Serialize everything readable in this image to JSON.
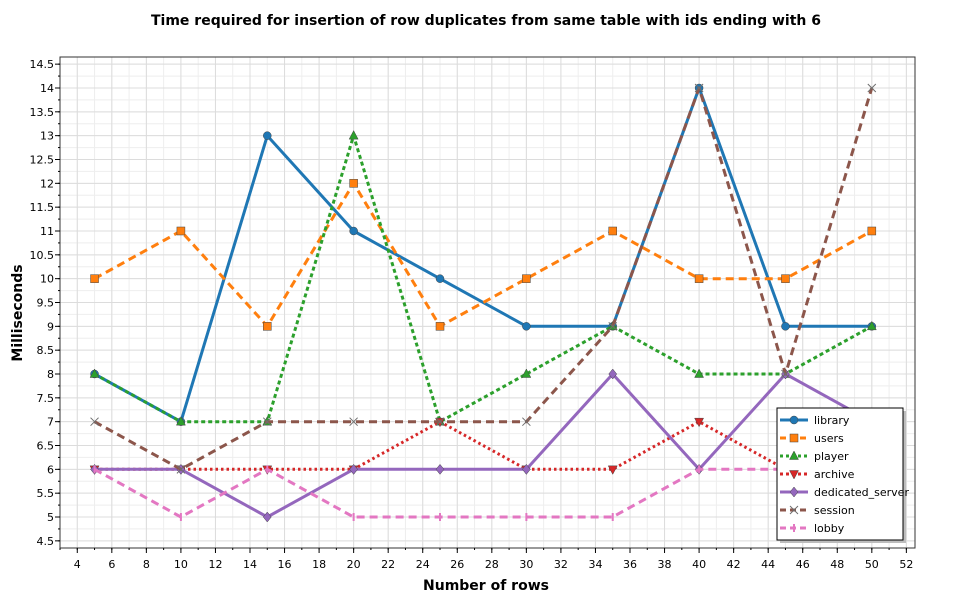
{
  "chart_data": {
    "type": "line",
    "title": "Time required for insertion of row duplicates from same table with ids ending with 6",
    "xlabel": "Number of rows",
    "ylabel": "Milliseconds",
    "xlim": [
      3,
      52.5
    ],
    "ylim": [
      4.35,
      14.65
    ],
    "x_ticks": [
      4,
      6,
      8,
      10,
      12,
      14,
      16,
      18,
      20,
      22,
      24,
      26,
      28,
      30,
      32,
      34,
      36,
      38,
      40,
      42,
      44,
      46,
      48,
      50,
      52
    ],
    "y_ticks": [
      4.5,
      5,
      5.5,
      6,
      6.5,
      7,
      7.5,
      8,
      8.5,
      9,
      9.5,
      10,
      10.5,
      11,
      11.5,
      12,
      12.5,
      13,
      13.5,
      14,
      14.5
    ],
    "grid": true,
    "legend_position": "bottom-right",
    "x": [
      5,
      10,
      15,
      20,
      25,
      30,
      35,
      40,
      45,
      50
    ],
    "series": [
      {
        "name": "library",
        "values": [
          8,
          7,
          13,
          11,
          10,
          9,
          9,
          14,
          9,
          9
        ],
        "color": "#1f77b4",
        "dash": "solid",
        "marker": "circle"
      },
      {
        "name": "users",
        "values": [
          10,
          11,
          9,
          12,
          9,
          10,
          11,
          10,
          10,
          11
        ],
        "color": "#ff7f0e",
        "dash": "dashed",
        "marker": "square"
      },
      {
        "name": "player",
        "values": [
          8,
          7,
          7,
          13,
          7,
          8,
          9,
          8,
          8,
          9
        ],
        "color": "#2ca02c",
        "dash": "dotted",
        "marker": "triangle"
      },
      {
        "name": "archive",
        "values": [
          6,
          6,
          6,
          6,
          7,
          6,
          6,
          7,
          6,
          6
        ],
        "color": "#d62728",
        "dash": "dotted-fine",
        "marker": "triangle-down"
      },
      {
        "name": "dedicated_server",
        "values": [
          6,
          6,
          5,
          6,
          6,
          6,
          8,
          6,
          8,
          7
        ],
        "color": "#9467bd",
        "dash": "solid",
        "marker": "diamond"
      },
      {
        "name": "session",
        "values": [
          7,
          6,
          7,
          7,
          7,
          7,
          9,
          14,
          8,
          14
        ],
        "color": "#8c564b",
        "dash": "dashed",
        "marker": "x"
      },
      {
        "name": "lobby",
        "values": [
          6,
          5,
          6,
          5,
          5,
          5,
          5,
          6,
          6,
          6
        ],
        "color": "#e377c2",
        "dash": "dashed",
        "marker": "tick"
      }
    ]
  }
}
